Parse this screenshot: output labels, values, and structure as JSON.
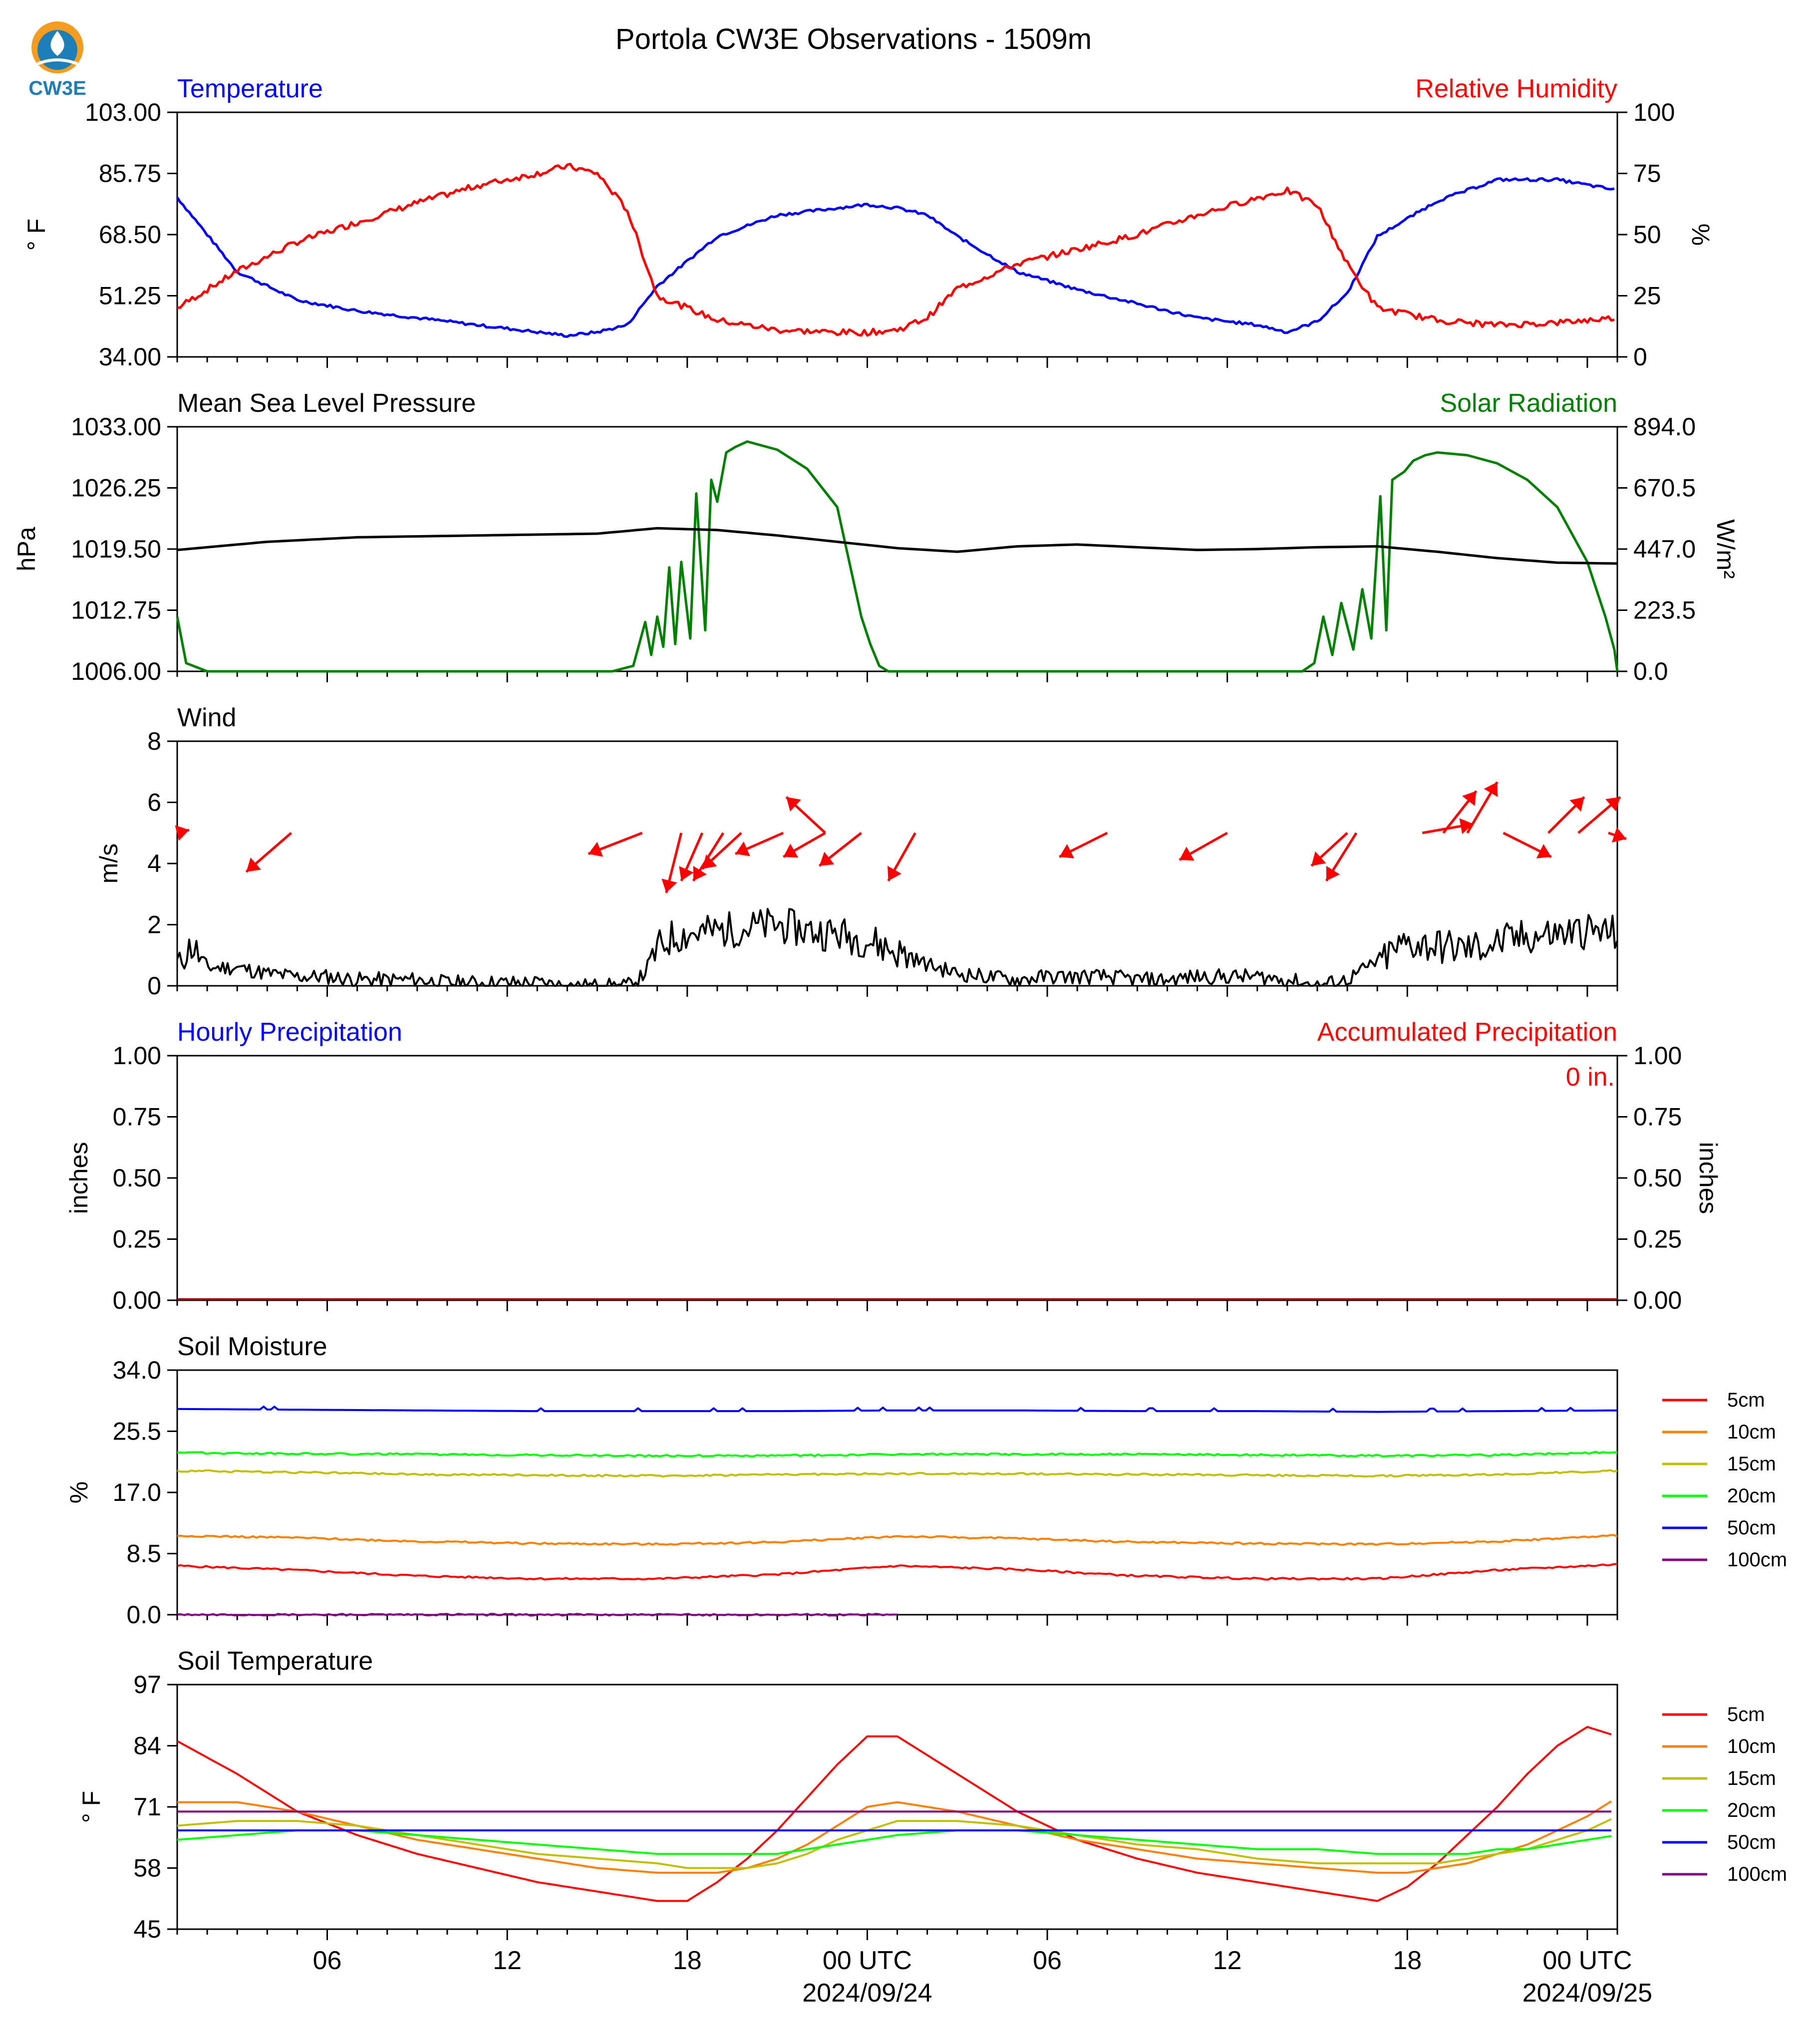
{
  "title": "Portola CW3E Observations - 1509m",
  "logo_text": "CW3E",
  "colors": {
    "red": "#ff0000",
    "blue": "#0000ff",
    "green": "#008000",
    "black": "#000000",
    "orange": "#ff8000",
    "olive": "#c0c000",
    "lime": "#00ff00",
    "purple": "#800080"
  },
  "x_axis": {
    "start": "2024-09-23T01:00Z",
    "end": "2024-09-25T01:00Z",
    "tick_labels": [
      {
        "time": "2024-09-23T06:00Z",
        "label": "06",
        "sub": ""
      },
      {
        "time": "2024-09-23T12:00Z",
        "label": "12",
        "sub": ""
      },
      {
        "time": "2024-09-23T18:00Z",
        "label": "18",
        "sub": ""
      },
      {
        "time": "2024-09-24T00:00Z",
        "label": "00 UTC",
        "sub": "2024/09/24"
      },
      {
        "time": "2024-09-24T06:00Z",
        "label": "06",
        "sub": ""
      },
      {
        "time": "2024-09-24T12:00Z",
        "label": "12",
        "sub": ""
      },
      {
        "time": "2024-09-24T18:00Z",
        "label": "18",
        "sub": ""
      },
      {
        "time": "2024-09-25T00:00Z",
        "label": "00 UTC",
        "sub": "2024/09/25"
      }
    ]
  },
  "panels": {
    "temp_rh": {
      "left_title": "Temperature",
      "right_title": "Relative Humidity",
      "left_ylabel": "$^\\circ$F",
      "right_ylabel": "%",
      "left_ylabel_text": "° F",
      "right_ylabel_text": "%",
      "left_ylim": [
        34,
        103
      ],
      "right_ylim": [
        0,
        100
      ],
      "left_ticks": [
        "103.00",
        "85.75",
        "68.50",
        "51.25",
        "34.00"
      ],
      "right_ticks": [
        "100",
        "75",
        "50",
        "25",
        "0"
      ]
    },
    "pressure_solar": {
      "left_title": "Mean Sea Level Pressure",
      "right_title": "Solar Radiation",
      "left_ylabel_text": "hPa",
      "right_ylabel_text": "W/m²",
      "left_ylim": [
        1006,
        1033
      ],
      "right_ylim": [
        0,
        894
      ],
      "left_ticks": [
        "1033.00",
        "1026.25",
        "1019.50",
        "1012.75",
        "1006.00"
      ],
      "right_ticks": [
        "894.0",
        "670.5",
        "447.0",
        "223.5",
        "0.0"
      ]
    },
    "wind": {
      "left_title": "Wind",
      "left_ylabel_text": "m/s",
      "ylim": [
        0,
        8
      ],
      "ticks": [
        "8",
        "6",
        "4",
        "2",
        "0"
      ]
    },
    "precip": {
      "left_title": "Hourly Precipitation",
      "right_title": "Accumulated Precipitation",
      "left_ylabel_text": "inches",
      "right_ylabel_text": "inches",
      "ylim": [
        0,
        1
      ],
      "ticks": [
        "1.00",
        "0.75",
        "0.50",
        "0.25",
        "0.00"
      ],
      "annotation": "0 in."
    },
    "soil_moisture": {
      "left_title": "Soil Moisture",
      "left_ylabel_text": "%",
      "ylim": [
        0,
        34
      ],
      "ticks": [
        "34.0",
        "25.5",
        "17.0",
        "8.5",
        "0.0"
      ]
    },
    "soil_temp": {
      "left_title": "Soil Temperature",
      "left_ylabel_text": "° F",
      "ylim": [
        45,
        97
      ],
      "ticks": [
        "97",
        "84",
        "71",
        "58",
        "45"
      ]
    }
  },
  "legend_labels": [
    "5cm",
    "10cm",
    "15cm",
    "20cm",
    "50cm",
    "100cm"
  ],
  "chart_data": [
    {
      "type": "line",
      "name": "temperature_rh",
      "x_hours_since_start": [
        0,
        2,
        4,
        6,
        8,
        10,
        12,
        13,
        14,
        15,
        16,
        18,
        20,
        22,
        23,
        24,
        25,
        26,
        28,
        30,
        32,
        34,
        36,
        37,
        38,
        39,
        40,
        42,
        44,
        46,
        48
      ],
      "series": [
        {
          "name": "Temperature",
          "axis": "left",
          "unit": "°F",
          "values": [
            79,
            58,
            50,
            47,
            45,
            43,
            41,
            40,
            41,
            43,
            54,
            68,
            74,
            76,
            77,
            76,
            74,
            68,
            58,
            53,
            49,
            45,
            43,
            41,
            44,
            52,
            68,
            78,
            84,
            84,
            81
          ]
        },
        {
          "name": "Relative Humidity",
          "axis": "right",
          "unit": "%",
          "values": [
            20,
            35,
            47,
            55,
            63,
            70,
            75,
            78,
            75,
            60,
            25,
            15,
            11,
            10,
            10,
            11,
            16,
            28,
            38,
            44,
            50,
            58,
            65,
            68,
            62,
            38,
            20,
            15,
            13,
            14,
            16
          ]
        }
      ]
    },
    {
      "type": "line",
      "name": "pressure_solar",
      "x_hours_since_start": [
        0,
        3,
        6,
        10,
        14,
        16,
        18,
        20,
        22,
        24,
        26,
        28,
        30,
        32,
        34,
        36,
        38,
        40,
        42,
        44,
        46,
        48
      ],
      "series": [
        {
          "name": "Mean Sea Level Pressure",
          "axis": "left",
          "unit": "hPa",
          "values": [
            1019.4,
            1020.3,
            1020.8,
            1021.0,
            1021.2,
            1021.8,
            1021.6,
            1021.0,
            1020.3,
            1019.6,
            1019.2,
            1019.8,
            1020.0,
            1019.7,
            1019.4,
            1019.5,
            1019.7,
            1019.8,
            1019.2,
            1018.5,
            1018.0,
            1017.9
          ]
        }
      ],
      "solar_radiation": {
        "name": "Solar Radiation",
        "unit": "W/m²",
        "x_hours_since_start": [
          0,
          0.3,
          1,
          14.5,
          15.2,
          15.6,
          15.8,
          16.0,
          16.2,
          16.4,
          16.6,
          16.8,
          17.1,
          17.3,
          17.6,
          17.8,
          18.0,
          18.3,
          18.6,
          19,
          20,
          21,
          22,
          22.8,
          23.1,
          23.4,
          23.7,
          24,
          24.2,
          37.5,
          37.9,
          38.2,
          38.5,
          38.8,
          39.2,
          39.5,
          39.8,
          40.1,
          40.3,
          40.5,
          40.9,
          41.2,
          41.6,
          42,
          43,
          44,
          45,
          46,
          47,
          47.6,
          47.9,
          48
        ],
        "values": [
          200,
          30,
          0,
          0,
          20,
          180,
          60,
          200,
          90,
          380,
          100,
          400,
          120,
          650,
          150,
          700,
          620,
          800,
          820,
          840,
          810,
          740,
          600,
          200,
          100,
          20,
          0,
          0,
          0,
          0,
          30,
          200,
          60,
          250,
          80,
          300,
          120,
          640,
          150,
          700,
          730,
          770,
          790,
          800,
          790,
          760,
          700,
          600,
          400,
          200,
          80,
          0
        ]
      }
    },
    {
      "type": "line",
      "name": "wind",
      "wind_speed": {
        "x_hours_since_start": [
          0,
          0.5,
          1,
          2,
          3,
          4,
          5,
          6,
          7,
          8,
          9,
          10,
          11,
          12,
          13,
          14,
          15,
          15.5,
          16,
          16.5,
          17,
          18,
          19,
          20,
          21,
          22,
          23,
          24,
          25,
          26,
          27,
          28,
          29,
          30,
          31,
          32,
          33,
          34,
          35,
          36,
          37,
          38,
          39,
          40,
          41,
          42,
          43,
          44,
          45,
          46,
          47,
          48
        ],
        "values": [
          0.8,
          1.3,
          0.6,
          0.6,
          0.4,
          0.3,
          0.3,
          0.2,
          0.2,
          0.2,
          0.1,
          0.1,
          0.1,
          0.1,
          0.0,
          0.0,
          0.0,
          0.3,
          1.2,
          1.6,
          1.7,
          1.8,
          1.9,
          2.0,
          1.8,
          1.7,
          1.5,
          1.1,
          0.7,
          0.4,
          0.3,
          0.2,
          0.3,
          0.3,
          0.3,
          0.2,
          0.2,
          0.3,
          0.3,
          0.3,
          0.2,
          0.0,
          0.2,
          0.8,
          1.4,
          1.3,
          1.2,
          1.4,
          1.6,
          1.7,
          1.8,
          1.7
        ]
      },
      "wind_arrows": [
        {
          "t": 0.0,
          "y": 5.0,
          "dx": 0.4,
          "dy": 0.1
        },
        {
          "t": 3.8,
          "y": 5.0,
          "dx": -1.5,
          "dy": -1.3
        },
        {
          "t": 15.5,
          "y": 5.0,
          "dx": -1.8,
          "dy": -0.7
        },
        {
          "t": 16.8,
          "y": 5.0,
          "dx": -0.5,
          "dy": -2.0
        },
        {
          "t": 17.5,
          "y": 5.0,
          "dx": -0.7,
          "dy": -1.6
        },
        {
          "t": 18.2,
          "y": 5.0,
          "dx": -1.0,
          "dy": -1.6
        },
        {
          "t": 18.8,
          "y": 5.0,
          "dx": -1.3,
          "dy": -1.2
        },
        {
          "t": 20.2,
          "y": 5.0,
          "dx": -1.6,
          "dy": -0.7
        },
        {
          "t": 21.6,
          "y": 5.0,
          "dx": -1.4,
          "dy": -0.8
        },
        {
          "t": 22.8,
          "y": 5.0,
          "dx": -1.4,
          "dy": -1.1
        },
        {
          "t": 24.6,
          "y": 5.0,
          "dx": -0.9,
          "dy": -1.6
        },
        {
          "t": 21.6,
          "y": 5.0,
          "dx": -1.3,
          "dy": 1.2
        },
        {
          "t": 31.0,
          "y": 5.0,
          "dx": -1.6,
          "dy": -0.8
        },
        {
          "t": 35.0,
          "y": 5.0,
          "dx": -1.6,
          "dy": -0.9
        },
        {
          "t": 39.0,
          "y": 5.0,
          "dx": -1.2,
          "dy": -1.1
        },
        {
          "t": 39.3,
          "y": 5.0,
          "dx": -1.0,
          "dy": -1.6
        },
        {
          "t": 41.5,
          "y": 5.0,
          "dx": 1.7,
          "dy": 0.3
        },
        {
          "t": 42.2,
          "y": 5.0,
          "dx": 1.1,
          "dy": 1.4
        },
        {
          "t": 43.0,
          "y": 5.0,
          "dx": 1.0,
          "dy": 1.7
        },
        {
          "t": 44.2,
          "y": 5.0,
          "dx": 1.6,
          "dy": -0.8
        },
        {
          "t": 45.7,
          "y": 5.0,
          "dx": 1.2,
          "dy": 1.2
        },
        {
          "t": 46.7,
          "y": 5.0,
          "dx": 1.4,
          "dy": 1.2
        },
        {
          "t": 47.7,
          "y": 5.0,
          "dx": 0.6,
          "dy": -0.2
        }
      ]
    },
    {
      "type": "line",
      "name": "precipitation",
      "series": [
        {
          "name": "Hourly Precipitation",
          "values": [
            0,
            0
          ]
        },
        {
          "name": "Accumulated Precipitation",
          "values": [
            0,
            0
          ]
        }
      ],
      "x_hours_since_start": [
        0,
        48
      ]
    },
    {
      "type": "line",
      "name": "soil_moisture",
      "x_hours_since_start": [
        0,
        4,
        8,
        12,
        16,
        20,
        24,
        28,
        32,
        36,
        40,
        44,
        48
      ],
      "series": [
        {
          "name": "5cm",
          "values": [
            6.8,
            6.2,
            5.4,
            5.0,
            5.0,
            5.6,
            6.8,
            6.3,
            5.4,
            5.0,
            5.0,
            6.2,
            7.0
          ]
        },
        {
          "name": "10cm",
          "values": [
            11.0,
            10.7,
            10.2,
            9.9,
            9.8,
            10.1,
            10.9,
            10.6,
            10.1,
            9.9,
            9.8,
            10.2,
            11.0
          ]
        },
        {
          "name": "15cm",
          "values": [
            20.0,
            19.8,
            19.5,
            19.4,
            19.3,
            19.5,
            19.6,
            19.6,
            19.5,
            19.4,
            19.3,
            19.5,
            20.0
          ]
        },
        {
          "name": "20cm",
          "values": [
            22.5,
            22.4,
            22.3,
            22.2,
            22.1,
            22.1,
            22.3,
            22.3,
            22.3,
            22.2,
            22.1,
            22.2,
            22.6
          ]
        },
        {
          "name": "50cm",
          "values": [
            28.6,
            28.5,
            28.4,
            28.3,
            28.3,
            28.3,
            28.4,
            28.4,
            28.3,
            28.3,
            28.2,
            28.3,
            28.4
          ]
        },
        {
          "name": "100cm",
          "values": [
            0.0,
            0.0,
            0.0,
            0.0,
            0.0,
            0.0,
            0.0
          ]
        }
      ],
      "series_100cm_x_hours_since_start": [
        0,
        4,
        8,
        12,
        16,
        20,
        24
      ]
    },
    {
      "type": "line",
      "name": "soil_temperature",
      "x_hours_since_start": [
        0,
        2,
        4,
        6,
        8,
        10,
        12,
        14,
        16,
        17,
        18,
        19,
        20,
        21,
        22,
        23,
        24,
        26,
        28,
        30,
        32,
        34,
        36,
        38,
        40,
        41,
        42,
        43,
        44,
        45,
        46,
        47,
        48
      ],
      "series": [
        {
          "name": "5cm",
          "values": [
            85,
            78,
            70,
            65,
            61,
            58,
            55,
            53,
            51,
            51,
            55,
            60,
            66,
            73,
            80,
            86,
            86,
            78,
            70,
            64,
            60,
            57,
            55,
            53,
            51,
            54,
            59,
            65,
            71,
            78,
            84,
            88,
            86
          ]
        },
        {
          "name": "10cm",
          "values": [
            72,
            72,
            70,
            67,
            64,
            62,
            60,
            58,
            57,
            57,
            57,
            58,
            60,
            63,
            67,
            71,
            72,
            70,
            67,
            64,
            62,
            60,
            59,
            58,
            57,
            57,
            58,
            59,
            61,
            63,
            66,
            69,
            73
          ]
        },
        {
          "name": "15cm",
          "values": [
            67,
            68,
            68,
            67,
            65,
            63,
            61,
            60,
            59,
            58,
            58,
            58,
            59,
            61,
            64,
            66,
            68,
            68,
            67,
            65,
            63,
            62,
            60,
            59,
            59,
            59,
            59,
            60,
            61,
            62,
            64,
            66,
            69
          ]
        },
        {
          "name": "20cm",
          "values": [
            64,
            65,
            66,
            66,
            65,
            64,
            63,
            62,
            61,
            61,
            61,
            61,
            61,
            62,
            63,
            64,
            65,
            66,
            66,
            65,
            64,
            63,
            62,
            62,
            61,
            61,
            61,
            61,
            62,
            62,
            63,
            64,
            65
          ]
        },
        {
          "name": "50cm",
          "values": [
            66,
            66,
            66,
            66,
            66,
            66,
            66,
            66,
            66,
            66,
            66,
            66,
            66,
            66,
            66,
            66,
            66,
            66,
            66,
            66,
            66,
            66,
            66,
            66,
            66,
            66,
            66,
            66,
            66,
            66,
            66,
            66,
            66
          ]
        },
        {
          "name": "100cm",
          "values": [
            70,
            70,
            70,
            70,
            70,
            70,
            70,
            70,
            70,
            70,
            70,
            70,
            70,
            70,
            70,
            70,
            70,
            70,
            70,
            70,
            70,
            70,
            70,
            70,
            70,
            70,
            70,
            70,
            70,
            70,
            70,
            70,
            70
          ]
        }
      ]
    }
  ]
}
